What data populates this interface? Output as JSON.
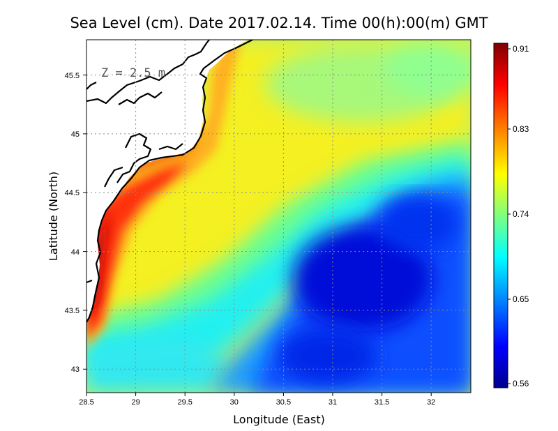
{
  "title": "Sea Level (cm). Date 2017.02.14. Time 00(h):00(m) GMT",
  "depth_label": "Z = 2.5 m",
  "x_axis": {
    "label": "Longitude (East)",
    "ticks": [
      "28.5",
      "29",
      "29.5",
      "30",
      "30.5",
      "31",
      "31.5",
      "32"
    ]
  },
  "y_axis": {
    "label": "Latitude (North)",
    "ticks": [
      "43",
      "43.5",
      "44",
      "44.5",
      "45",
      "45.5"
    ]
  },
  "colorbar": {
    "ticks": [
      "0.56",
      "0.65",
      "0.74",
      "0.83",
      "0.91"
    ],
    "colormap": "jet",
    "min": 0.56,
    "max": 0.91
  },
  "map_extent": {
    "lon": [
      28.5,
      32.4
    ],
    "lat": [
      42.8,
      45.8
    ]
  },
  "grid": "dotted",
  "colors": {
    "land": "#ffffff",
    "coast": "#000000",
    "jet_dark_red": "#800000",
    "jet_red": "#ff0000",
    "jet_yellow": "#ffff00",
    "jet_cyan": "#00ffff",
    "jet_blue": "#0000ff",
    "jet_dark_blue": "#00008f"
  }
}
